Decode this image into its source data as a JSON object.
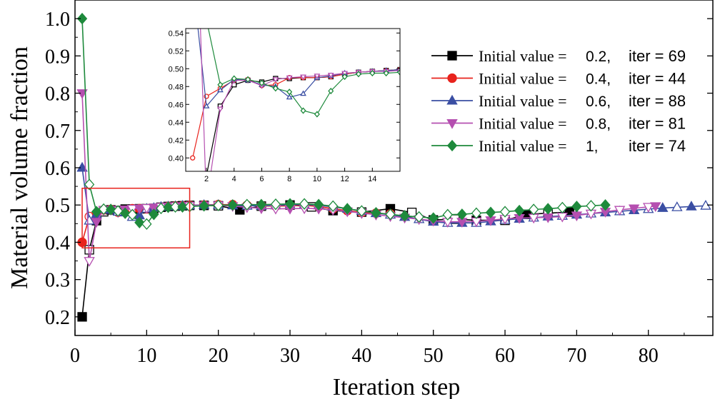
{
  "chart_data": {
    "type": "line",
    "xlabel": "Iteration step",
    "ylabel": "Material volume fraction",
    "xlim": [
      0,
      89
    ],
    "ylim": [
      0.15,
      1.05
    ],
    "xticks": [
      0,
      10,
      20,
      30,
      40,
      50,
      60,
      70,
      80
    ],
    "xtick_labels": [
      "0",
      "10",
      "20",
      "30",
      "40",
      "50",
      "60",
      "70",
      "80"
    ],
    "yticks": [
      0.2,
      0.3,
      0.4,
      0.5,
      0.6,
      0.7,
      0.8,
      0.9,
      1.0
    ],
    "ytick_labels": [
      "0.2",
      "0.3",
      "0.4",
      "0.5",
      "0.6",
      "0.7",
      "0.8",
      "0.9",
      "1.0"
    ],
    "legend_position": "top-right",
    "zoom_box": {
      "x": [
        1,
        16
      ],
      "y": [
        0.385,
        0.545
      ]
    },
    "series": [
      {
        "name": "Initial value = 0.2",
        "label_prefix": "Initial value = ",
        "label_value": "0.2,",
        "label_iter": "iter = 69",
        "color": "#000000",
        "marker": "square",
        "x": [
          1,
          2,
          3,
          4,
          5,
          6,
          7,
          8,
          9,
          10,
          11,
          12,
          13,
          14,
          15,
          16,
          18,
          20,
          23,
          26,
          30,
          33,
          36,
          40,
          44,
          47,
          50,
          53,
          56,
          60,
          63,
          66,
          69
        ],
        "y": [
          0.2,
          0.38,
          0.458,
          0.482,
          0.487,
          0.485,
          0.489,
          0.489,
          0.49,
          0.49,
          0.491,
          0.494,
          0.496,
          0.497,
          0.498,
          0.499,
          0.499,
          0.498,
          0.487,
          0.497,
          0.5,
          0.495,
          0.485,
          0.481,
          0.49,
          0.48,
          0.46,
          0.462,
          0.459,
          0.459,
          0.475,
          0.478,
          0.481
        ]
      },
      {
        "name": "Initial value = 0.4",
        "label_prefix": "Initial value = ",
        "label_value": "0.4,",
        "label_iter": "iter = 44",
        "color": "#e8231d",
        "marker": "circle",
        "x": [
          1,
          2,
          3,
          4,
          5,
          6,
          7,
          8,
          9,
          10,
          11,
          12,
          13,
          14,
          15,
          16,
          18,
          20,
          22,
          24,
          26,
          28,
          30,
          32,
          34,
          36,
          38,
          40,
          42,
          44
        ],
        "y": [
          0.4,
          0.469,
          0.478,
          0.487,
          0.488,
          0.481,
          0.482,
          0.49,
          0.49,
          0.49,
          0.491,
          0.494,
          0.496,
          0.497,
          0.498,
          0.499,
          0.5,
          0.501,
          0.501,
          0.499,
          0.498,
          0.497,
          0.498,
          0.499,
          0.496,
          0.49,
          0.485,
          0.48,
          0.478,
          0.476
        ]
      },
      {
        "name": "Initial value = 0.6",
        "label_prefix": "Initial value = ",
        "label_value": "0.6,",
        "label_iter": "iter = 88",
        "color": "#3a4ea3",
        "marker": "triangle-up",
        "x": [
          1,
          2,
          3,
          4,
          5,
          6,
          7,
          8,
          9,
          10,
          11,
          12,
          13,
          14,
          15,
          16,
          18,
          20,
          22,
          24,
          26,
          28,
          30,
          32,
          34,
          36,
          38,
          40,
          42,
          44,
          46,
          48,
          50,
          52,
          54,
          56,
          58,
          60,
          62,
          64,
          66,
          68,
          70,
          72,
          74,
          76,
          78,
          80,
          82,
          84,
          86,
          88
        ],
        "y": [
          0.6,
          0.458,
          0.476,
          0.488,
          0.487,
          0.482,
          0.48,
          0.468,
          0.472,
          0.49,
          0.492,
          0.495,
          0.496,
          0.497,
          0.498,
          0.499,
          0.5,
          0.5,
          0.499,
          0.498,
          0.498,
          0.499,
          0.5,
          0.501,
          0.499,
          0.495,
          0.49,
          0.484,
          0.478,
          0.474,
          0.468,
          0.462,
          0.455,
          0.452,
          0.452,
          0.452,
          0.456,
          0.46,
          0.463,
          0.466,
          0.469,
          0.471,
          0.474,
          0.477,
          0.48,
          0.483,
          0.486,
          0.489,
          0.492,
          0.494,
          0.496,
          0.498
        ]
      },
      {
        "name": "Initial value = 0.8",
        "label_prefix": "Initial value = ",
        "label_value": "0.8,",
        "label_iter": "iter = 81",
        "color": "#b54fb0",
        "marker": "triangle-down",
        "x": [
          1,
          2,
          3,
          4,
          5,
          6,
          7,
          8,
          9,
          10,
          11,
          12,
          13,
          14,
          15,
          16,
          18,
          20,
          22,
          24,
          26,
          28,
          30,
          32,
          34,
          36,
          38,
          40,
          42,
          44,
          46,
          48,
          50,
          52,
          54,
          56,
          58,
          60,
          62,
          64,
          66,
          68,
          70,
          72,
          74,
          76,
          78,
          80,
          81
        ],
        "y": [
          0.8,
          0.35,
          0.455,
          0.487,
          0.487,
          0.481,
          0.488,
          0.49,
          0.491,
          0.492,
          0.493,
          0.495,
          0.496,
          0.497,
          0.497,
          0.498,
          0.499,
          0.499,
          0.497,
          0.494,
          0.491,
          0.49,
          0.49,
          0.491,
          0.49,
          0.487,
          0.483,
          0.478,
          0.474,
          0.47,
          0.466,
          0.462,
          0.458,
          0.455,
          0.455,
          0.456,
          0.459,
          0.463,
          0.465,
          0.466,
          0.467,
          0.469,
          0.472,
          0.477,
          0.482,
          0.487,
          0.491,
          0.495,
          0.497
        ]
      },
      {
        "name": "Initial value = 1",
        "label_prefix": "Initial value = ",
        "label_value": "1,",
        "label_iter": "iter = 74",
        "color": "#1e8a3c",
        "marker": "diamond",
        "x": [
          1,
          2,
          3,
          4,
          5,
          6,
          7,
          8,
          9,
          10,
          11,
          12,
          13,
          14,
          15,
          16,
          18,
          20,
          22,
          24,
          26,
          28,
          30,
          32,
          34,
          36,
          38,
          40,
          42,
          44,
          46,
          48,
          50,
          52,
          54,
          56,
          58,
          60,
          62,
          64,
          66,
          68,
          70,
          72,
          74
        ],
        "y": [
          1.0,
          0.555,
          0.482,
          0.489,
          0.488,
          0.484,
          0.478,
          0.474,
          0.453,
          0.449,
          0.475,
          0.491,
          0.494,
          0.495,
          0.495,
          0.496,
          0.498,
          0.499,
          0.5,
          0.501,
          0.501,
          0.502,
          0.503,
          0.503,
          0.501,
          0.497,
          0.49,
          0.484,
          0.479,
          0.475,
          0.471,
          0.468,
          0.465,
          0.474,
          0.475,
          0.478,
          0.48,
          0.482,
          0.485,
          0.488,
          0.49,
          0.493,
          0.496,
          0.498,
          0.5
        ]
      }
    ],
    "inset": {
      "xlim": [
        0.5,
        16
      ],
      "ylim": [
        0.385,
        0.545
      ],
      "xticks": [
        2,
        4,
        6,
        8,
        10,
        12,
        14
      ],
      "xtick_labels": [
        "2",
        "4",
        "6",
        "8",
        "10",
        "12",
        "14"
      ],
      "yticks": [
        0.4,
        0.42,
        0.44,
        0.46,
        0.48,
        0.5,
        0.52,
        0.54
      ],
      "ytick_labels": [
        "0.40",
        "0.42",
        "0.44",
        "0.46",
        "0.48",
        "0.50",
        "0.52",
        "0.54"
      ]
    }
  }
}
